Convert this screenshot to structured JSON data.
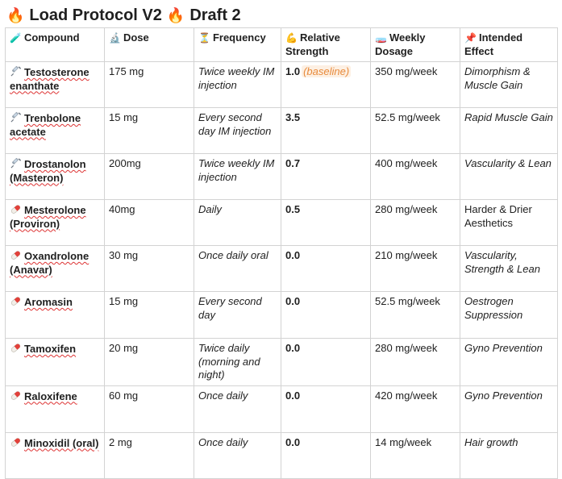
{
  "title": {
    "icon_left": "fire-icon",
    "text_a": "Load Protocol V2",
    "icon_mid": "fire-icon",
    "text_b": "Draft 2"
  },
  "colors": {
    "flame": "#f25c05",
    "syringe": "#9aa6b2",
    "pill_red": "#e2403a",
    "pill_white": "#f2efe9",
    "baseline": "#e88a3c"
  },
  "headers": [
    {
      "icon": "test-tube-icon",
      "glyph": "🧪",
      "label": "Compound"
    },
    {
      "icon": "microscope-icon",
      "glyph": "🔬",
      "label": "Dose"
    },
    {
      "icon": "hourglass-icon",
      "glyph": "⏳",
      "label": "Frequency"
    },
    {
      "icon": "flexed-biceps-icon",
      "glyph": "💪",
      "label": "Relative Strength"
    },
    {
      "icon": "test-tube-rack-icon",
      "glyph": "🧫",
      "label": "Weekly Dosage"
    },
    {
      "icon": "pushpin-icon",
      "glyph": "📌",
      "label": "Intended Effect"
    }
  ],
  "rows": [
    {
      "icon": "syringe-icon",
      "compound": "Testosterone enanthate",
      "dose": "175 mg",
      "frequency": "Twice weekly IM injection",
      "strength": "1.0",
      "note": "(baseline)",
      "weekly": "350 mg/week",
      "effect": "Dimorphism & Muscle Gain",
      "effect_italic": true
    },
    {
      "icon": "syringe-icon",
      "compound": "Trenbolone acetate",
      "dose": "15 mg",
      "frequency": "Every second day IM injection",
      "strength": "3.5",
      "note": "",
      "weekly": "52.5 mg/week",
      "effect": "Rapid Muscle Gain",
      "effect_italic": true
    },
    {
      "icon": "syringe-icon",
      "compound": "Drostanolon (Masteron)",
      "dose": "200mg",
      "frequency": "Twice weekly IM injection",
      "strength": "0.7",
      "note": "",
      "weekly": "400 mg/week",
      "effect": "Vascularity & Lean",
      "effect_italic": true
    },
    {
      "icon": "pill-icon",
      "compound": "Mesterolone (Proviron)",
      "dose": "40mg",
      "frequency": "Daily",
      "strength": "0.5",
      "note": "",
      "weekly": "280 mg/week",
      "effect": "Harder & Drier Aesthetics",
      "effect_italic": false
    },
    {
      "icon": "pill-icon",
      "compound": "Oxandrolone (Anavar)",
      "dose": "30 mg",
      "frequency": "Once daily oral",
      "strength": "0.0",
      "note": "",
      "weekly": "210 mg/week",
      "effect": "Vascularity, Strength & Lean",
      "effect_italic": true
    },
    {
      "icon": "pill-icon",
      "compound": "Aromasin",
      "dose": "15 mg",
      "frequency": "Every second day",
      "strength": "0.0",
      "note": "",
      "weekly": "52.5 mg/week",
      "effect": "Oestrogen Suppression",
      "effect_italic": true
    },
    {
      "icon": "pill-icon",
      "compound": "Tamoxifen",
      "dose": "20 mg",
      "frequency": "Twice daily (morning and night)",
      "strength": "0.0",
      "note": "",
      "weekly": "280 mg/week",
      "effect": "Gyno Prevention",
      "effect_italic": true
    },
    {
      "icon": "pill-icon",
      "compound": "Raloxifene",
      "dose": "60 mg",
      "frequency": "Once daily",
      "strength": "0.0",
      "note": "",
      "weekly": "420 mg/week",
      "effect": "Gyno Prevention",
      "effect_italic": true
    },
    {
      "icon": "pill-icon",
      "compound": "Minoxidil (oral)",
      "dose": "2 mg",
      "frequency": "Once daily",
      "strength": "0.0",
      "note": "",
      "weekly": "14 mg/week",
      "effect": "Hair growth",
      "effect_italic": true
    }
  ]
}
